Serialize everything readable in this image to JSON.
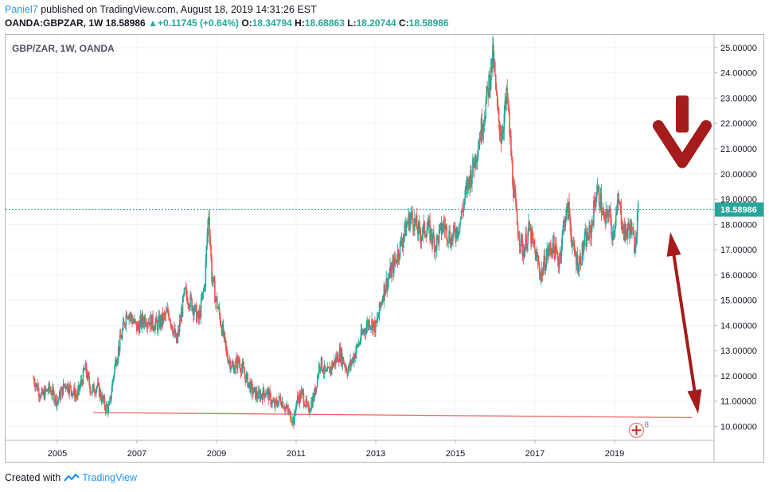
{
  "header": {
    "author": "Paniel7",
    "published_text": "published on TradingView.com, August 18, 2019 14:31:26 EST",
    "symbol": "OANDA:GBPZAR, 1W",
    "last": "18.58986",
    "change_arrow": "▲",
    "change": "+0.11745 (+0.64%)",
    "o_label": "O:",
    "o": "18.34794",
    "h_label": "H:",
    "h": "18.68863",
    "l_label": "L:",
    "l": "18.20744",
    "c_label": "C:",
    "c": "18.58986"
  },
  "footer": {
    "created_with": "Created with",
    "brand": "TradingView"
  },
  "colors": {
    "up": "#26a69a",
    "down": "#ef5350",
    "accent": "#2196f3",
    "last_price": "#26a69a",
    "annotation": "#a61b1b",
    "support_line": "#f06460"
  },
  "chart_data": {
    "type": "line",
    "title": "GBP/ZAR, 1W, OANDA",
    "last_price_label": "18.58986",
    "x_ticks": [
      "2005",
      "2007",
      "2009",
      "2011",
      "2013",
      "2015",
      "2017",
      "2019"
    ],
    "y_ticks": [
      "10.00000",
      "11.00000",
      "12.00000",
      "13.00000",
      "14.00000",
      "15.00000",
      "16.00000",
      "17.00000",
      "18.00000",
      "19.00000",
      "20.00000",
      "21.00000",
      "22.00000",
      "23.00000",
      "24.00000",
      "25.00000"
    ],
    "xlim": [
      2003.7,
      2021.5
    ],
    "ylim": [
      9.45,
      25.5
    ],
    "grid": true,
    "last_price": 18.58986,
    "series": [
      {
        "x": [
          2004.4,
          2004.6,
          2004.8,
          2005.0,
          2005.2,
          2005.5,
          2005.7,
          2005.85,
          2006.0,
          2006.2,
          2006.3,
          2006.45,
          2006.6,
          2006.75,
          2007.0,
          2007.2,
          2007.5,
          2007.8,
          2008.0,
          2008.2,
          2008.4,
          2008.55,
          2008.7,
          2008.8,
          2008.88,
          2008.95,
          2009.1,
          2009.25,
          2009.4,
          2009.55,
          2009.75,
          2009.9,
          2010.05,
          2010.25,
          2010.45,
          2010.6,
          2010.75,
          2010.95,
          2011.0,
          2011.15,
          2011.3,
          2011.45,
          2011.6,
          2011.75,
          2011.9,
          2012.1,
          2012.3,
          2012.5,
          2012.7,
          2012.85,
          2013.0,
          2013.2,
          2013.4,
          2013.5,
          2013.65,
          2013.8,
          2013.9,
          2014.0,
          2014.1,
          2014.3,
          2014.5,
          2014.7,
          2014.9,
          2015.1,
          2015.3,
          2015.45,
          2015.6,
          2015.75,
          2015.85,
          2015.95,
          2016.05,
          2016.15,
          2016.3,
          2016.45,
          2016.55,
          2016.7,
          2016.85,
          2017.0,
          2017.15,
          2017.3,
          2017.45,
          2017.6,
          2017.75,
          2017.85,
          2017.95,
          2018.1,
          2018.25,
          2018.4,
          2018.55,
          2018.65,
          2018.75,
          2018.85,
          2018.95,
          2019.1,
          2019.25,
          2019.4,
          2019.5,
          2019.6
        ],
        "y": [
          11.9,
          11.2,
          11.5,
          11.0,
          11.7,
          11.2,
          12.3,
          11.4,
          11.6,
          10.8,
          10.7,
          12.5,
          13.5,
          14.6,
          13.9,
          14.3,
          14.0,
          14.5,
          13.3,
          15.3,
          14.8,
          14.2,
          15.6,
          18.6,
          16.0,
          15.3,
          14.2,
          12.9,
          12.3,
          12.6,
          11.9,
          11.4,
          11.2,
          11.4,
          10.8,
          11.1,
          10.7,
          10.2,
          11.0,
          11.3,
          10.6,
          11.2,
          12.6,
          12.0,
          12.4,
          12.9,
          12.2,
          13.0,
          13.8,
          14.2,
          13.9,
          15.4,
          16.2,
          16.6,
          17.3,
          18.1,
          18.3,
          18.0,
          17.6,
          17.9,
          17.2,
          18.0,
          17.4,
          18.0,
          19.5,
          20.3,
          21.4,
          22.6,
          23.7,
          24.7,
          22.5,
          21.5,
          23.1,
          19.6,
          18.0,
          16.9,
          17.8,
          16.9,
          16.0,
          16.8,
          17.2,
          16.5,
          18.3,
          18.6,
          17.0,
          16.4,
          17.3,
          17.7,
          19.4,
          18.9,
          18.0,
          18.6,
          17.6,
          18.9,
          17.6,
          17.9,
          17.2,
          18.6
        ]
      }
    ],
    "annotations": {
      "support_line": {
        "x1": 2005.9,
        "y1": 10.55,
        "x2": 2020.95,
        "y2": 10.35
      },
      "down_arrow": {
        "x": 2020.7,
        "y_top": 23.1,
        "y_tip": 20.45
      },
      "double_arrow": {
        "x1": 2020.4,
        "y1": 17.7,
        "x2": 2021.1,
        "y2": 10.5
      },
      "flag_marker": {
        "x": 2019.55,
        "y": 9.85,
        "label": "8"
      }
    }
  }
}
